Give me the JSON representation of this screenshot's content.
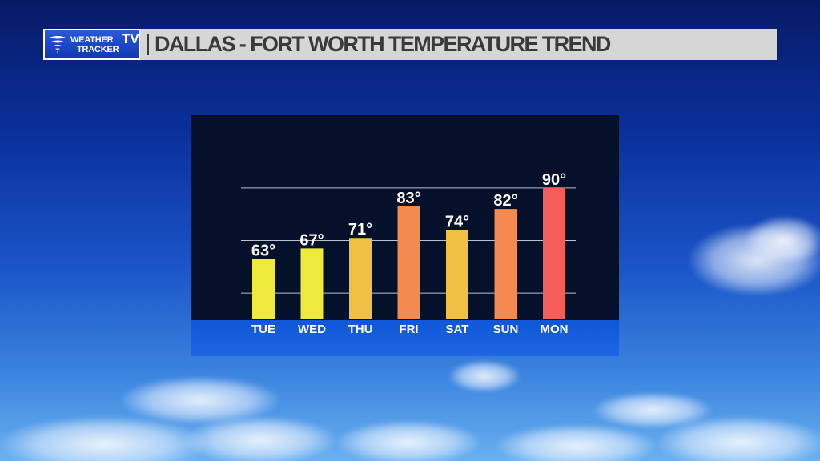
{
  "header": {
    "logo_line1": "WEATHER",
    "logo_line2": "TRACKER",
    "logo_tv": "TV",
    "title": "DALLAS - FORT WORTH TEMPERATURE TREND"
  },
  "chart_data": {
    "type": "bar",
    "title": "DALLAS - FORT WORTH TEMPERATURE TREND",
    "xlabel": "",
    "ylabel": "",
    "categories": [
      "TUE",
      "WED",
      "THU",
      "FRI",
      "SAT",
      "SUN",
      "MON"
    ],
    "values": [
      63,
      67,
      71,
      83,
      74,
      82,
      90
    ],
    "value_labels": [
      "63°",
      "67°",
      "71°",
      "83°",
      "74°",
      "82°",
      "90°"
    ],
    "bar_colors": [
      "#eeea3c",
      "#eeea3c",
      "#f2bf45",
      "#f58a4e",
      "#f2bf45",
      "#f58a4e",
      "#f45d58"
    ],
    "ylim": [
      40,
      100
    ],
    "grid": true,
    "legend": "none"
  },
  "colors": {
    "title_bar": "#d6d6d6",
    "title_text": "#3a3a3a",
    "panel": "#05102a",
    "panel_base": "#1f66e3",
    "gridline": "#b9c0d0"
  }
}
